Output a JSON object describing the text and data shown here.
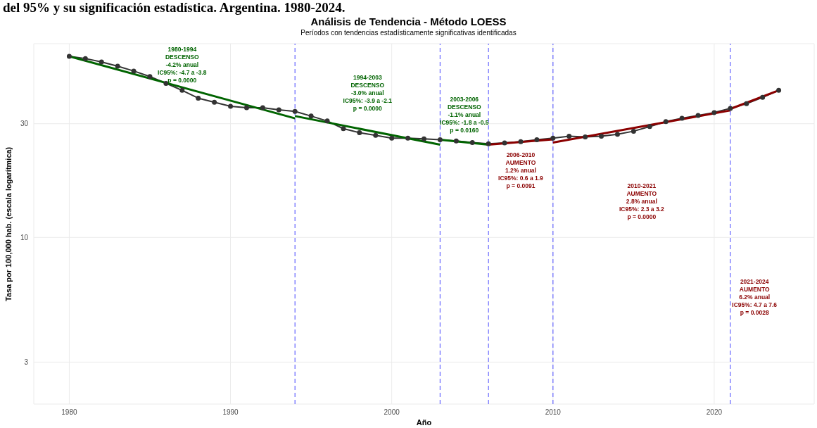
{
  "chart_data": {
    "type": "line",
    "title": "Análisis de Tendencia - Método LOESS",
    "subtitle": "Períodos con tendencias estadísticamente significativas identificadas",
    "xlabel": "Año",
    "ylabel": "Tasa por 100,000 hab. (escala logarítmica)",
    "x": [
      1980,
      1981,
      1982,
      1983,
      1984,
      1985,
      1986,
      1987,
      1988,
      1989,
      1990,
      1991,
      1992,
      1993,
      1994,
      1995,
      1996,
      1997,
      1998,
      1999,
      2000,
      2001,
      2002,
      2003,
      2004,
      2005,
      2006,
      2007,
      2008,
      2009,
      2010,
      2011,
      2012,
      2013,
      2014,
      2015,
      2016,
      2017,
      2018,
      2019,
      2020,
      2021,
      2022,
      2023,
      2024
    ],
    "series": [
      {
        "color": "#333333",
        "marker": "circle",
        "values": [
          57.5,
          56.3,
          54.5,
          52.3,
          49.9,
          47.3,
          44.3,
          41.4,
          38.4,
          36.9,
          35.5,
          35.0,
          35.0,
          34.3,
          33.8,
          32.3,
          30.8,
          28.6,
          27.5,
          26.8,
          26.1,
          26.1,
          25.9,
          25.7,
          25.4,
          25.0,
          24.7,
          24.9,
          25.2,
          25.7,
          26.1,
          26.6,
          26.4,
          26.6,
          27.1,
          27.9,
          29.2,
          30.6,
          31.6,
          32.5,
          33.4,
          34.8,
          36.4,
          38.7,
          41.4
        ]
      },
      {
        "color": "#006400",
        "marker": "none",
        "x": [
          1980,
          1994
        ],
        "values": [
          57.5,
          31.6
        ]
      },
      {
        "color": "#006400",
        "marker": "none",
        "x": [
          1994,
          2003
        ],
        "values": [
          32.3,
          24.5
        ]
      },
      {
        "color": "#006400",
        "marker": "none",
        "x": [
          2003,
          2006
        ],
        "values": [
          25.7,
          24.5
        ]
      },
      {
        "color": "#8b0000",
        "marker": "none",
        "x": [
          2006,
          2010
        ],
        "values": [
          24.5,
          25.8
        ]
      },
      {
        "color": "#8b0000",
        "marker": "none",
        "x": [
          2010,
          2021
        ],
        "values": [
          25.0,
          34.1
        ]
      },
      {
        "color": "#8b0000",
        "marker": "none",
        "x": [
          2021,
          2024
        ],
        "values": [
          34.6,
          41.4
        ]
      }
    ],
    "xlim": [
      1977.8,
      2026.2
    ],
    "xticks": [
      1980,
      1990,
      2000,
      2010,
      2020
    ],
    "ylim": [
      2,
      65
    ],
    "yticks": [
      3,
      10,
      30
    ],
    "log": "y",
    "grid": true,
    "ref_lines": [
      {
        "axis": "x",
        "value": 1994,
        "color": "#6666ff",
        "line_style": "dashed"
      },
      {
        "axis": "x",
        "value": 2003,
        "color": "#6666ff",
        "line_style": "dashed"
      },
      {
        "axis": "x",
        "value": 2006,
        "color": "#6666ff",
        "line_style": "dashed"
      },
      {
        "axis": "x",
        "value": 2010,
        "color": "#6666ff",
        "line_style": "dashed"
      },
      {
        "axis": "x",
        "value": 2021,
        "color": "#6666ff",
        "line_style": "dashed"
      }
    ],
    "annotations": [
      "del 95% y su significación estadística. Argentina. 1980-2024.",
      "1980-1994\nDESCENSO\n-4.2% anual\nIC95%: -4.7 a -3.8\np = 0.0000",
      "1994-2003\nDESCENSO\n-3.0% anual\nIC95%: -3.9 a -2.1\np = 0.0000",
      "2003-2006\nDESCENSO\n-1.1% anual\nIC95%: -1.8 a -0.5\np = 0.0160",
      "2006-2010\nAUMENTO\n1.2% anual\nIC95%: 0.6 a 1.9\np = 0.0091",
      "2010-2021\nAUMENTO\n2.8% anual\nIC95%: 2.3 a 3.2\np = 0.0000",
      "2021-2024\nAUMENTO\n6.2% anual\nIC95%: 4.7 a 7.6\np = 0.0028"
    ]
  }
}
